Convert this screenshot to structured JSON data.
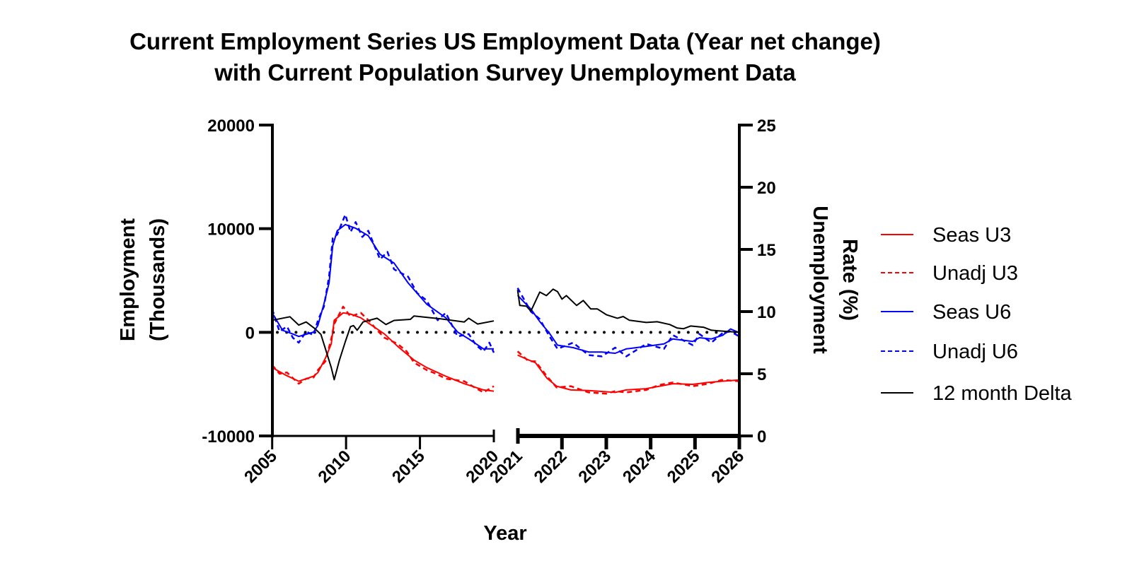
{
  "chart_data": {
    "type": "line",
    "title": [
      "Current Employment Series US Employment Data (Year net change)",
      "with Current Population Survey Unemployment Data"
    ],
    "xlabel": "Year",
    "ylabel_left": [
      "Employment",
      "(Thousands)"
    ],
    "ylabel_right": [
      "Unemployment",
      "Rate (%)"
    ],
    "x_segments": [
      [
        2005,
        2020
      ],
      [
        2021,
        2026
      ]
    ],
    "x_ticks": [
      [
        "2005",
        "2010",
        "2015",
        "2020"
      ],
      [
        "2021",
        "2022",
        "2023",
        "2024",
        "2025",
        "2026"
      ]
    ],
    "ylim_left": [
      -10000,
      20000
    ],
    "yticks_left": [
      "-10000",
      "0",
      "10000",
      "20000"
    ],
    "ylim_right": [
      0,
      25
    ],
    "yticks_right": [
      "0",
      "5",
      "10",
      "15",
      "20",
      "25"
    ],
    "zero_line": "dotted",
    "legend_position": "right",
    "colors": {
      "u3": "#ff0000",
      "u6": "#0000ff",
      "delta": "#000000"
    },
    "series": [
      {
        "name": "Seas U3",
        "axis": "right",
        "color": "#ff0000",
        "style": "solid",
        "segments": [
          [
            [
              2005.0,
              5.5
            ],
            [
              2005.9,
              4.9
            ],
            [
              2006.8,
              4.4
            ],
            [
              2007.8,
              4.8
            ],
            [
              2008.1,
              5.1
            ],
            [
              2008.6,
              6.25
            ],
            [
              2009.0,
              7.4
            ],
            [
              2009.2,
              9.3
            ],
            [
              2009.8,
              9.9
            ],
            [
              2010.3,
              9.8
            ],
            [
              2011.0,
              9.5
            ],
            [
              2011.6,
              9.0
            ],
            [
              2012.6,
              8.2
            ],
            [
              2013.5,
              7.2
            ],
            [
              2014.6,
              6.1
            ],
            [
              2015.45,
              5.5
            ],
            [
              2016.75,
              4.8
            ],
            [
              2018.0,
              4.2
            ],
            [
              2019.3,
              3.7
            ],
            [
              2020.0,
              3.6
            ]
          ],
          [
            [
              2021.0,
              6.5
            ],
            [
              2021.25,
              6.1
            ],
            [
              2021.4,
              5.9
            ],
            [
              2021.66,
              4.65
            ],
            [
              2021.88,
              4.0
            ],
            [
              2022.2,
              3.7
            ],
            [
              2022.6,
              3.65
            ],
            [
              2023.2,
              3.5
            ],
            [
              2023.45,
              3.7
            ],
            [
              2023.9,
              3.8
            ],
            [
              2024.2,
              4.0
            ],
            [
              2024.5,
              4.2
            ],
            [
              2024.95,
              4.15
            ],
            [
              2025.3,
              4.3
            ],
            [
              2025.6,
              4.4
            ],
            [
              2026.0,
              4.5
            ]
          ]
        ]
      },
      {
        "name": "Unadj U3",
        "axis": "right",
        "color": "#ff0000",
        "style": "dashed",
        "segments": [
          [
            [
              2005.0,
              5.7
            ],
            [
              2005.5,
              5.0
            ],
            [
              2006.0,
              5.1
            ],
            [
              2006.8,
              4.2
            ],
            [
              2007.3,
              4.6
            ],
            [
              2007.8,
              4.7
            ],
            [
              2008.1,
              5.3
            ],
            [
              2008.6,
              6.0
            ],
            [
              2009.0,
              7.8
            ],
            [
              2009.2,
              9.0
            ],
            [
              2009.8,
              10.4
            ],
            [
              2010.3,
              9.6
            ],
            [
              2011.0,
              9.9
            ],
            [
              2011.6,
              9.2
            ],
            [
              2012.1,
              8.5
            ],
            [
              2012.6,
              7.9
            ],
            [
              2013.5,
              7.4
            ],
            [
              2014.1,
              6.8
            ],
            [
              2014.6,
              5.9
            ],
            [
              2015.45,
              5.3
            ],
            [
              2016.1,
              5.0
            ],
            [
              2016.75,
              4.6
            ],
            [
              2018.0,
              4.4
            ],
            [
              2018.7,
              3.9
            ],
            [
              2019.3,
              3.5
            ],
            [
              2020.0,
              4.0
            ]
          ],
          [
            [
              2021.0,
              6.8
            ],
            [
              2021.25,
              6.0
            ],
            [
              2021.4,
              6.0
            ],
            [
              2021.66,
              4.8
            ],
            [
              2021.88,
              3.9
            ],
            [
              2022.2,
              4.0
            ],
            [
              2022.6,
              3.5
            ],
            [
              2023.0,
              3.4
            ],
            [
              2023.2,
              3.6
            ],
            [
              2023.45,
              3.5
            ],
            [
              2023.9,
              3.7
            ],
            [
              2024.2,
              4.1
            ],
            [
              2024.5,
              4.3
            ],
            [
              2024.95,
              4.0
            ],
            [
              2025.3,
              4.2
            ],
            [
              2025.6,
              4.5
            ],
            [
              2026.0,
              4.4
            ]
          ]
        ]
      },
      {
        "name": "Seas U6",
        "axis": "right",
        "color": "#0000ff",
        "style": "solid",
        "segments": [
          [
            [
              2005.0,
              9.9
            ],
            [
              2005.7,
              8.5
            ],
            [
              2006.4,
              8.2
            ],
            [
              2006.8,
              8.0
            ],
            [
              2007.8,
              8.35
            ],
            [
              2008.1,
              8.9
            ],
            [
              2008.5,
              10.6
            ],
            [
              2008.85,
              12.3
            ],
            [
              2009.1,
              15.3
            ],
            [
              2009.4,
              16.5
            ],
            [
              2009.95,
              17.0
            ],
            [
              2010.65,
              16.7
            ],
            [
              2011.5,
              16.1
            ],
            [
              2012.3,
              14.6
            ],
            [
              2013.25,
              13.9
            ],
            [
              2014.2,
              12.3
            ],
            [
              2015.45,
              10.6
            ],
            [
              2016.75,
              9.5
            ],
            [
              2017.55,
              8.35
            ],
            [
              2018.3,
              7.8
            ],
            [
              2019.3,
              7.0
            ],
            [
              2020.0,
              7.0
            ]
          ],
          [
            [
              2021.0,
              11.3
            ],
            [
              2021.3,
              10.2
            ],
            [
              2021.5,
              9.2
            ],
            [
              2021.72,
              8.25
            ],
            [
              2021.9,
              7.3
            ],
            [
              2022.25,
              7.1
            ],
            [
              2022.6,
              6.75
            ],
            [
              2022.9,
              6.75
            ],
            [
              2023.2,
              6.65
            ],
            [
              2023.45,
              7.0
            ],
            [
              2023.9,
              7.2
            ],
            [
              2024.3,
              7.4
            ],
            [
              2024.5,
              7.8
            ],
            [
              2024.95,
              7.6
            ],
            [
              2025.1,
              7.9
            ],
            [
              2025.37,
              7.8
            ],
            [
              2025.63,
              8.1
            ],
            [
              2025.8,
              8.6
            ],
            [
              2026.0,
              8.3
            ]
          ]
        ]
      },
      {
        "name": "Unadj U6",
        "axis": "right",
        "color": "#0000ff",
        "style": "dashed",
        "segments": [
          [
            [
              2005.0,
              10.2
            ],
            [
              2005.5,
              8.4
            ],
            [
              2006.0,
              8.8
            ],
            [
              2006.4,
              7.9
            ],
            [
              2006.8,
              7.5
            ],
            [
              2007.3,
              8.4
            ],
            [
              2007.8,
              8.1
            ],
            [
              2008.1,
              9.3
            ],
            [
              2008.5,
              10.4
            ],
            [
              2008.85,
              12.8
            ],
            [
              2009.1,
              15.9
            ],
            [
              2009.4,
              16.2
            ],
            [
              2009.95,
              17.8
            ],
            [
              2010.3,
              16.4
            ],
            [
              2010.65,
              17.2
            ],
            [
              2011.1,
              16.0
            ],
            [
              2011.5,
              16.5
            ],
            [
              2012.3,
              14.2
            ],
            [
              2012.8,
              14.8
            ],
            [
              2013.25,
              13.4
            ],
            [
              2014.2,
              12.8
            ],
            [
              2014.8,
              11.5
            ],
            [
              2015.45,
              10.9
            ],
            [
              2016.2,
              9.3
            ],
            [
              2016.75,
              9.9
            ],
            [
              2017.55,
              8.0
            ],
            [
              2018.3,
              8.2
            ],
            [
              2018.8,
              7.3
            ],
            [
              2019.3,
              6.8
            ],
            [
              2019.7,
              7.5
            ],
            [
              2020.0,
              6.7
            ]
          ],
          [
            [
              2021.0,
              11.9
            ],
            [
              2021.3,
              10.0
            ],
            [
              2021.5,
              9.4
            ],
            [
              2021.72,
              8.0
            ],
            [
              2021.9,
              7.0
            ],
            [
              2022.25,
              7.5
            ],
            [
              2022.6,
              6.5
            ],
            [
              2022.9,
              6.4
            ],
            [
              2023.2,
              7.1
            ],
            [
              2023.45,
              6.4
            ],
            [
              2023.9,
              7.4
            ],
            [
              2024.3,
              7.0
            ],
            [
              2024.5,
              8.1
            ],
            [
              2024.95,
              7.3
            ],
            [
              2025.1,
              8.2
            ],
            [
              2025.37,
              7.5
            ],
            [
              2025.63,
              8.3
            ],
            [
              2025.8,
              8.4
            ],
            [
              2026.0,
              8.0
            ]
          ]
        ]
      },
      {
        "name": "12 month Delta",
        "axis": "left",
        "color": "#000000",
        "style": "solid",
        "segments": [
          [
            [
              2005.0,
              1160
            ],
            [
              2006.2,
              1500
            ],
            [
              2006.8,
              700
            ],
            [
              2007.3,
              1000
            ],
            [
              2007.9,
              340
            ],
            [
              2008.3,
              -200
            ],
            [
              2008.6,
              -1570
            ],
            [
              2009.0,
              -3400
            ],
            [
              2009.2,
              -4570
            ],
            [
              2009.55,
              -2700
            ],
            [
              2009.95,
              -900
            ],
            [
              2010.3,
              550
            ],
            [
              2010.5,
              650
            ],
            [
              2010.75,
              200
            ],
            [
              2011.15,
              1000
            ],
            [
              2012.1,
              1360
            ],
            [
              2012.7,
              750
            ],
            [
              2013.25,
              1150
            ],
            [
              2014.35,
              1250
            ],
            [
              2014.6,
              1570
            ],
            [
              2016.4,
              1300
            ],
            [
              2018.0,
              1000
            ],
            [
              2018.3,
              1360
            ],
            [
              2018.9,
              800
            ],
            [
              2020.0,
              1100
            ]
          ],
          [
            [
              2021.0,
              4090
            ],
            [
              2021.05,
              2590
            ],
            [
              2021.2,
              2520
            ],
            [
              2021.3,
              2050
            ],
            [
              2021.5,
              3880
            ],
            [
              2021.65,
              3540
            ],
            [
              2021.8,
              4160
            ],
            [
              2021.9,
              3930
            ],
            [
              2022.0,
              3200
            ],
            [
              2022.1,
              3540
            ],
            [
              2022.33,
              2590
            ],
            [
              2022.48,
              3070
            ],
            [
              2022.65,
              2250
            ],
            [
              2022.8,
              2250
            ],
            [
              2023.0,
              1700
            ],
            [
              2023.25,
              1360
            ],
            [
              2023.38,
              1520
            ],
            [
              2023.52,
              1160
            ],
            [
              2023.9,
              950
            ],
            [
              2024.15,
              1020
            ],
            [
              2024.43,
              750
            ],
            [
              2024.6,
              410
            ],
            [
              2024.74,
              340
            ],
            [
              2024.9,
              610
            ],
            [
              2025.2,
              480
            ],
            [
              2025.37,
              200
            ],
            [
              2025.75,
              70
            ],
            [
              2026.0,
              0
            ]
          ]
        ]
      }
    ]
  }
}
